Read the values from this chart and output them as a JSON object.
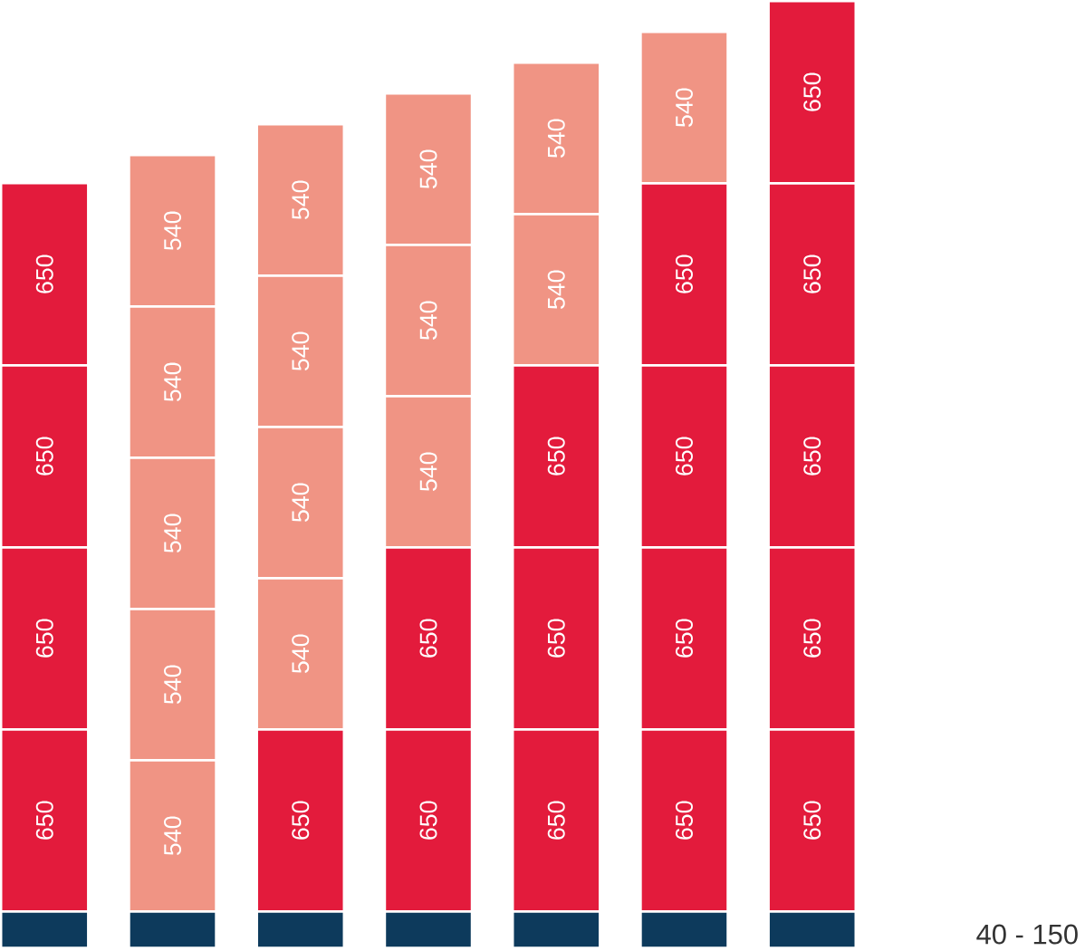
{
  "chart_data": {
    "type": "bar",
    "stacked": true,
    "categories": [
      null,
      null,
      null,
      null,
      null,
      null,
      null
    ],
    "series": [
      {
        "colors": [
          "#0d3a5c",
          "#0d3a5c",
          "#0d3a5c",
          "#0d3a5c",
          "#0d3a5c",
          "#0d3a5c",
          "#0d3a5c"
        ],
        "values": [
          130,
          130,
          130,
          130,
          130,
          130,
          130
        ]
      },
      {
        "colors": [
          "#e31b3c",
          "#f09484",
          "#e31b3c",
          "#e31b3c",
          "#e31b3c",
          "#e31b3c",
          "#e31b3c"
        ],
        "values": [
          650,
          540,
          650,
          650,
          650,
          650,
          650
        ],
        "value_labels": [
          "650",
          "540",
          "650",
          "650",
          "650",
          "650",
          "650"
        ]
      },
      {
        "colors": [
          "#e31b3c",
          "#f09484",
          "#f09484",
          "#e31b3c",
          "#e31b3c",
          "#e31b3c",
          "#e31b3c"
        ],
        "values": [
          650,
          540,
          540,
          650,
          650,
          650,
          650
        ],
        "value_labels": [
          "650",
          "540",
          "540",
          "650",
          "650",
          "650",
          "650"
        ]
      },
      {
        "colors": [
          "#e31b3c",
          "#f09484",
          "#f09484",
          "#f09484",
          "#e31b3c",
          "#e31b3c",
          "#e31b3c"
        ],
        "values": [
          650,
          540,
          540,
          540,
          650,
          650,
          650
        ],
        "value_labels": [
          "650",
          "540",
          "540",
          "540",
          "650",
          "650",
          "650"
        ]
      },
      {
        "colors": [
          "#e31b3c",
          "#f09484",
          "#f09484",
          "#f09484",
          "#f09484",
          "#e31b3c",
          "#e31b3c"
        ],
        "values": [
          650,
          540,
          540,
          540,
          540,
          650,
          650
        ],
        "value_labels": [
          "650",
          "540",
          "540",
          "540",
          "540",
          "650",
          "650"
        ]
      },
      {
        "colors": [
          null,
          "#f09484",
          "#f09484",
          "#f09484",
          "#f09484",
          "#f09484",
          "#e31b3c"
        ],
        "values": [
          null,
          540,
          540,
          540,
          540,
          540,
          650
        ],
        "value_labels": [
          null,
          "540",
          "540",
          "540",
          "540",
          "540",
          "650"
        ]
      }
    ],
    "annotations": [
      "40 - 150"
    ]
  }
}
